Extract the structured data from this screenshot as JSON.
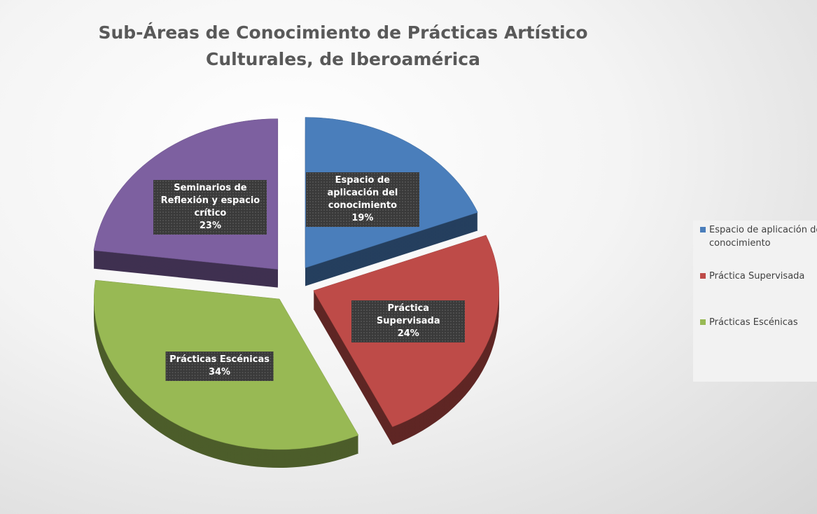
{
  "chart_data": {
    "type": "pie",
    "title": "Sub-Áreas de Conocimiento de Prácticas Artístico Culturales, de Iberoamérica",
    "categories": [
      "Espacio de aplicación del conocimiento",
      "Práctica Supervisada",
      "Prácticas Escénicas",
      "Seminarios de Reflexión y espacio crítico"
    ],
    "values": [
      19,
      24,
      34,
      23
    ],
    "value_labels": [
      "19%",
      "24%",
      "34%",
      "23%"
    ],
    "colors": [
      "#4a7ebb",
      "#be4b48",
      "#98b954",
      "#7d60a0"
    ],
    "legend": "right"
  }
}
